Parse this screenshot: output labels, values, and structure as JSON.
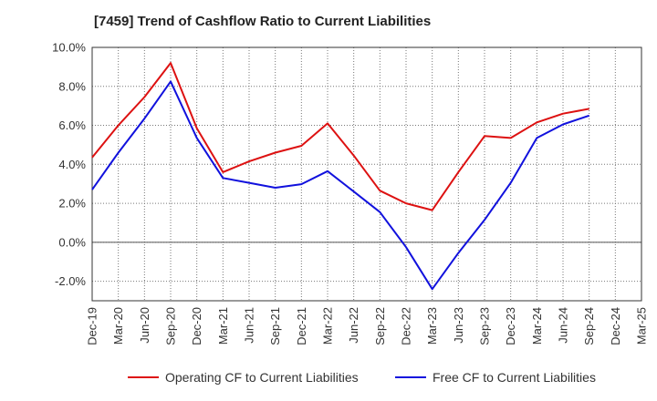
{
  "chart_data": {
    "type": "line",
    "title": "[7459]  Trend of Cashflow Ratio to Current Liabilities",
    "x": [
      "Dec-19",
      "Mar-20",
      "Jun-20",
      "Sep-20",
      "Dec-20",
      "Mar-21",
      "Jun-21",
      "Sep-21",
      "Dec-21",
      "Mar-22",
      "Jun-22",
      "Sep-22",
      "Dec-22",
      "Mar-23",
      "Jun-23",
      "Sep-23",
      "Dec-23",
      "Mar-24",
      "Jun-24",
      "Sep-24",
      "Dec-24",
      "Mar-25"
    ],
    "series": [
      {
        "name": "Operating CF to Current Liabilities",
        "color": "#dd1111",
        "values": [
          4.35,
          6.0,
          7.45,
          9.2,
          5.85,
          3.6,
          4.15,
          4.6,
          4.95,
          6.1,
          4.45,
          2.65,
          2.0,
          1.65,
          3.6,
          5.45,
          5.35,
          6.15,
          6.6,
          6.85,
          null,
          null
        ]
      },
      {
        "name": "Free CF to Current Liabilities",
        "color": "#1111dd",
        "values": [
          2.7,
          4.6,
          6.35,
          8.25,
          5.35,
          3.3,
          3.05,
          2.8,
          2.98,
          3.65,
          2.6,
          1.55,
          -0.25,
          -2.4,
          -0.55,
          1.15,
          3.05,
          5.35,
          6.05,
          6.5,
          null,
          null
        ]
      }
    ],
    "yticks": [
      "10.0%",
      "8.0%",
      "6.0%",
      "4.0%",
      "2.0%",
      "0.0%",
      "-2.0%"
    ],
    "ytick_values": [
      10,
      8,
      6,
      4,
      2,
      0,
      -2
    ],
    "ylim": [
      -3.0,
      10.0
    ],
    "grid": true,
    "legend_position": "bottom"
  }
}
